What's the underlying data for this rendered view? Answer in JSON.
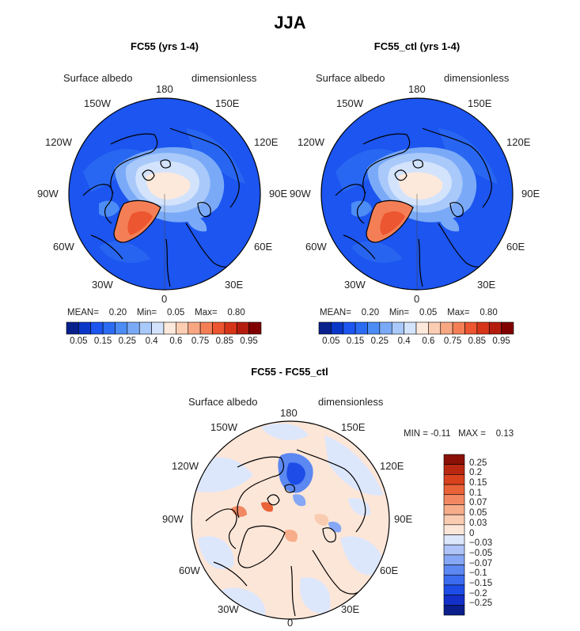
{
  "figure": {
    "season": "JJA"
  },
  "shared": {
    "variable": "Surface albedo",
    "units": "dimensionless",
    "lon_labels": {
      "top": "180",
      "bottom": "0",
      "left": "90W",
      "right": "90E",
      "nw1": "150W",
      "ne1": "150E",
      "nw2": "120W",
      "ne2": "120E",
      "sw1": "60W",
      "se1": "60E",
      "sw2": "30W",
      "se2": "30E"
    }
  },
  "colors": {
    "abs_scale": [
      "#08208c",
      "#0a37c8",
      "#1c55ef",
      "#2c6cf2",
      "#4c8cf5",
      "#7aaaf7",
      "#a9c9fa",
      "#d3e3fc",
      "#fde9dc",
      "#fbcdb3",
      "#f8a783",
      "#f47f57",
      "#ec5630",
      "#d63518",
      "#b41d0e",
      "#800000"
    ],
    "diff_scale": [
      "#0a1e8c",
      "#1330c8",
      "#1d4de6",
      "#3b6cef",
      "#5c88f2",
      "#86a7f5",
      "#aec4f8",
      "#dde7fc",
      "#fce6d8",
      "#f9cbb0",
      "#f7ad8a",
      "#f28862",
      "#ea6338",
      "#d9421d",
      "#b82810",
      "#8a1005"
    ]
  },
  "chart_data": [
    {
      "type": "heatmap",
      "title": "FC55 (yrs 1-4)",
      "projection": "north polar stereographic",
      "stats": {
        "mean_label": "MEAN=",
        "mean": "0.20",
        "min_label": "Min=",
        "min": "0.05",
        "max_label": "Max=",
        "max": "0.80"
      },
      "colorbar": {
        "orientation": "horizontal",
        "tick_labels": [
          "0.05",
          "0.15",
          "0.25",
          "0.4",
          "0.6",
          "0.75",
          "0.85",
          "0.95"
        ]
      }
    },
    {
      "type": "heatmap",
      "title": "FC55_ctl (yrs 1-4)",
      "projection": "north polar stereographic",
      "stats": {
        "mean_label": "MEAN=",
        "mean": "0.20",
        "min_label": "Min=",
        "min": "0.05",
        "max_label": "Max=",
        "max": "0.80"
      },
      "colorbar": {
        "orientation": "horizontal",
        "tick_labels": [
          "0.05",
          "0.15",
          "0.25",
          "0.4",
          "0.6",
          "0.75",
          "0.85",
          "0.95"
        ]
      }
    },
    {
      "type": "heatmap",
      "title": "FC55 - FC55_ctl",
      "projection": "north polar stereographic",
      "stats": {
        "min_label": "MIN =",
        "min": "-0.11",
        "max_label": "MAX =",
        "max": "0.13"
      },
      "colorbar": {
        "orientation": "vertical",
        "tick_labels": [
          "0.25",
          "0.2",
          "0.15",
          "0.1",
          "0.07",
          "0.05",
          "0.03",
          "0",
          "−0.03",
          "−0.05",
          "−0.07",
          "−0.1",
          "−0.15",
          "−0.2",
          "−0.25"
        ]
      }
    }
  ]
}
